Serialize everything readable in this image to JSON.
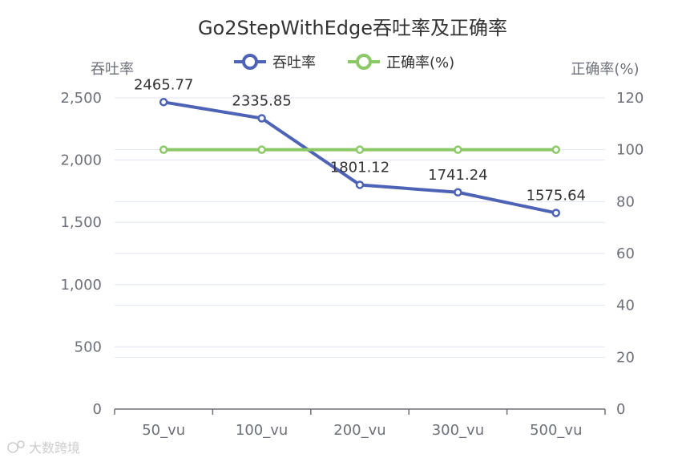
{
  "chart_data": {
    "type": "line",
    "title": "Go2StepWithEdge吞吐率及正确率",
    "categories": [
      "50_vu",
      "100_vu",
      "200_vu",
      "300_vu",
      "500_vu"
    ],
    "y_left": {
      "label": "吞吐率",
      "min": 0,
      "max": 2500,
      "step": 500,
      "tick_labels": [
        "0",
        "500",
        "1,000",
        "1,500",
        "2,000",
        "2,500"
      ]
    },
    "y_right": {
      "label": "正确率(%)",
      "min": 0,
      "max": 120,
      "step": 20,
      "tick_labels": [
        "0",
        "20",
        "40",
        "60",
        "80",
        "100",
        "120"
      ]
    },
    "series": [
      {
        "name": "吞吐率",
        "axis": "left",
        "color": "#4e63b5",
        "values": [
          2465.77,
          2335.85,
          1801.12,
          1741.24,
          1575.64
        ],
        "labels": [
          "2465.77",
          "2335.85",
          "1801.12",
          "1741.24",
          "1575.64"
        ]
      },
      {
        "name": "正确率(%)",
        "axis": "right",
        "color": "#8bc866",
        "values": [
          100,
          100,
          100,
          100,
          100
        ]
      }
    ],
    "legend_position": "top-center",
    "grid": true
  },
  "watermark": {
    "text": "大数跨境"
  }
}
